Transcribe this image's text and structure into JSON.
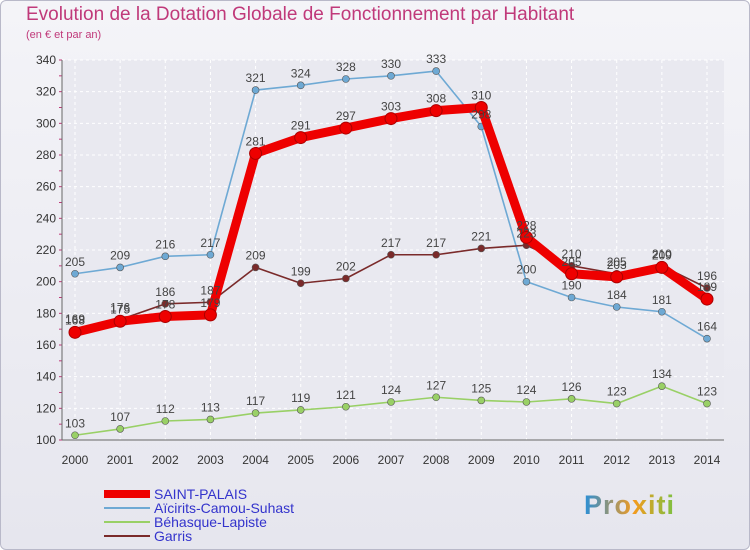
{
  "page": {
    "title": "Evolution de la Dotation Globale de Fonctionnement par Habitant",
    "subtitle": "(en € et par an)",
    "brand": "Proxiti"
  },
  "chart_data": {
    "type": "line",
    "title": "Evolution de la Dotation Globale de Fonctionnement par Habitant",
    "subtitle": "(en € et par an)",
    "xlabel": "",
    "ylabel": "",
    "ylim": [
      100,
      340
    ],
    "yticks": [
      100,
      120,
      140,
      160,
      180,
      200,
      220,
      240,
      260,
      280,
      300,
      320,
      340
    ],
    "grid": true,
    "legend_position": "bottom-left",
    "x": [
      2000,
      2001,
      2002,
      2003,
      2004,
      2005,
      2006,
      2007,
      2008,
      2009,
      2010,
      2011,
      2012,
      2013,
      2014
    ],
    "series": [
      {
        "name": "SAINT-PALAIS",
        "color": "#ee0000",
        "values": [
          168,
          175,
          178,
          179,
          281,
          291,
          297,
          303,
          308,
          310,
          228,
          205,
          203,
          209,
          189
        ],
        "labels": [
          "168",
          "175",
          "178",
          "179",
          "281",
          "291",
          "297",
          "303",
          "308",
          "310",
          "228",
          "205",
          "203",
          "209",
          "189"
        ]
      },
      {
        "name": "Aïcirits-Camou-Suhast",
        "color": "#6ea9d4",
        "values": [
          205,
          209,
          216,
          217,
          321,
          324,
          328,
          330,
          333,
          298,
          200,
          190,
          184,
          181,
          164
        ],
        "labels": [
          "205",
          "209",
          "216",
          "217",
          "321",
          "324",
          "328",
          "330",
          "333",
          "298",
          "200",
          "190",
          "184",
          "181",
          "164"
        ]
      },
      {
        "name": "Béhasque-Lapiste",
        "color": "#99d066",
        "values": [
          103,
          107,
          112,
          113,
          117,
          119,
          121,
          124,
          127,
          125,
          124,
          126,
          123,
          134,
          123
        ],
        "labels": [
          "103",
          "107",
          "112",
          "113",
          "117",
          "119",
          "121",
          "124",
          "127",
          "125",
          "124",
          "126",
          "123",
          "134",
          "123"
        ]
      },
      {
        "name": "Garris",
        "color": "#7a2a2a",
        "values": [
          169,
          176,
          186,
          187,
          209,
          199,
          202,
          217,
          217,
          221,
          223,
          210,
          205,
          210,
          196
        ],
        "labels": [
          "169",
          "176",
          "186",
          "187",
          "209",
          "199",
          "202",
          "217",
          "217",
          "221",
          "223",
          "210",
          "205",
          "210",
          "196"
        ]
      }
    ]
  }
}
